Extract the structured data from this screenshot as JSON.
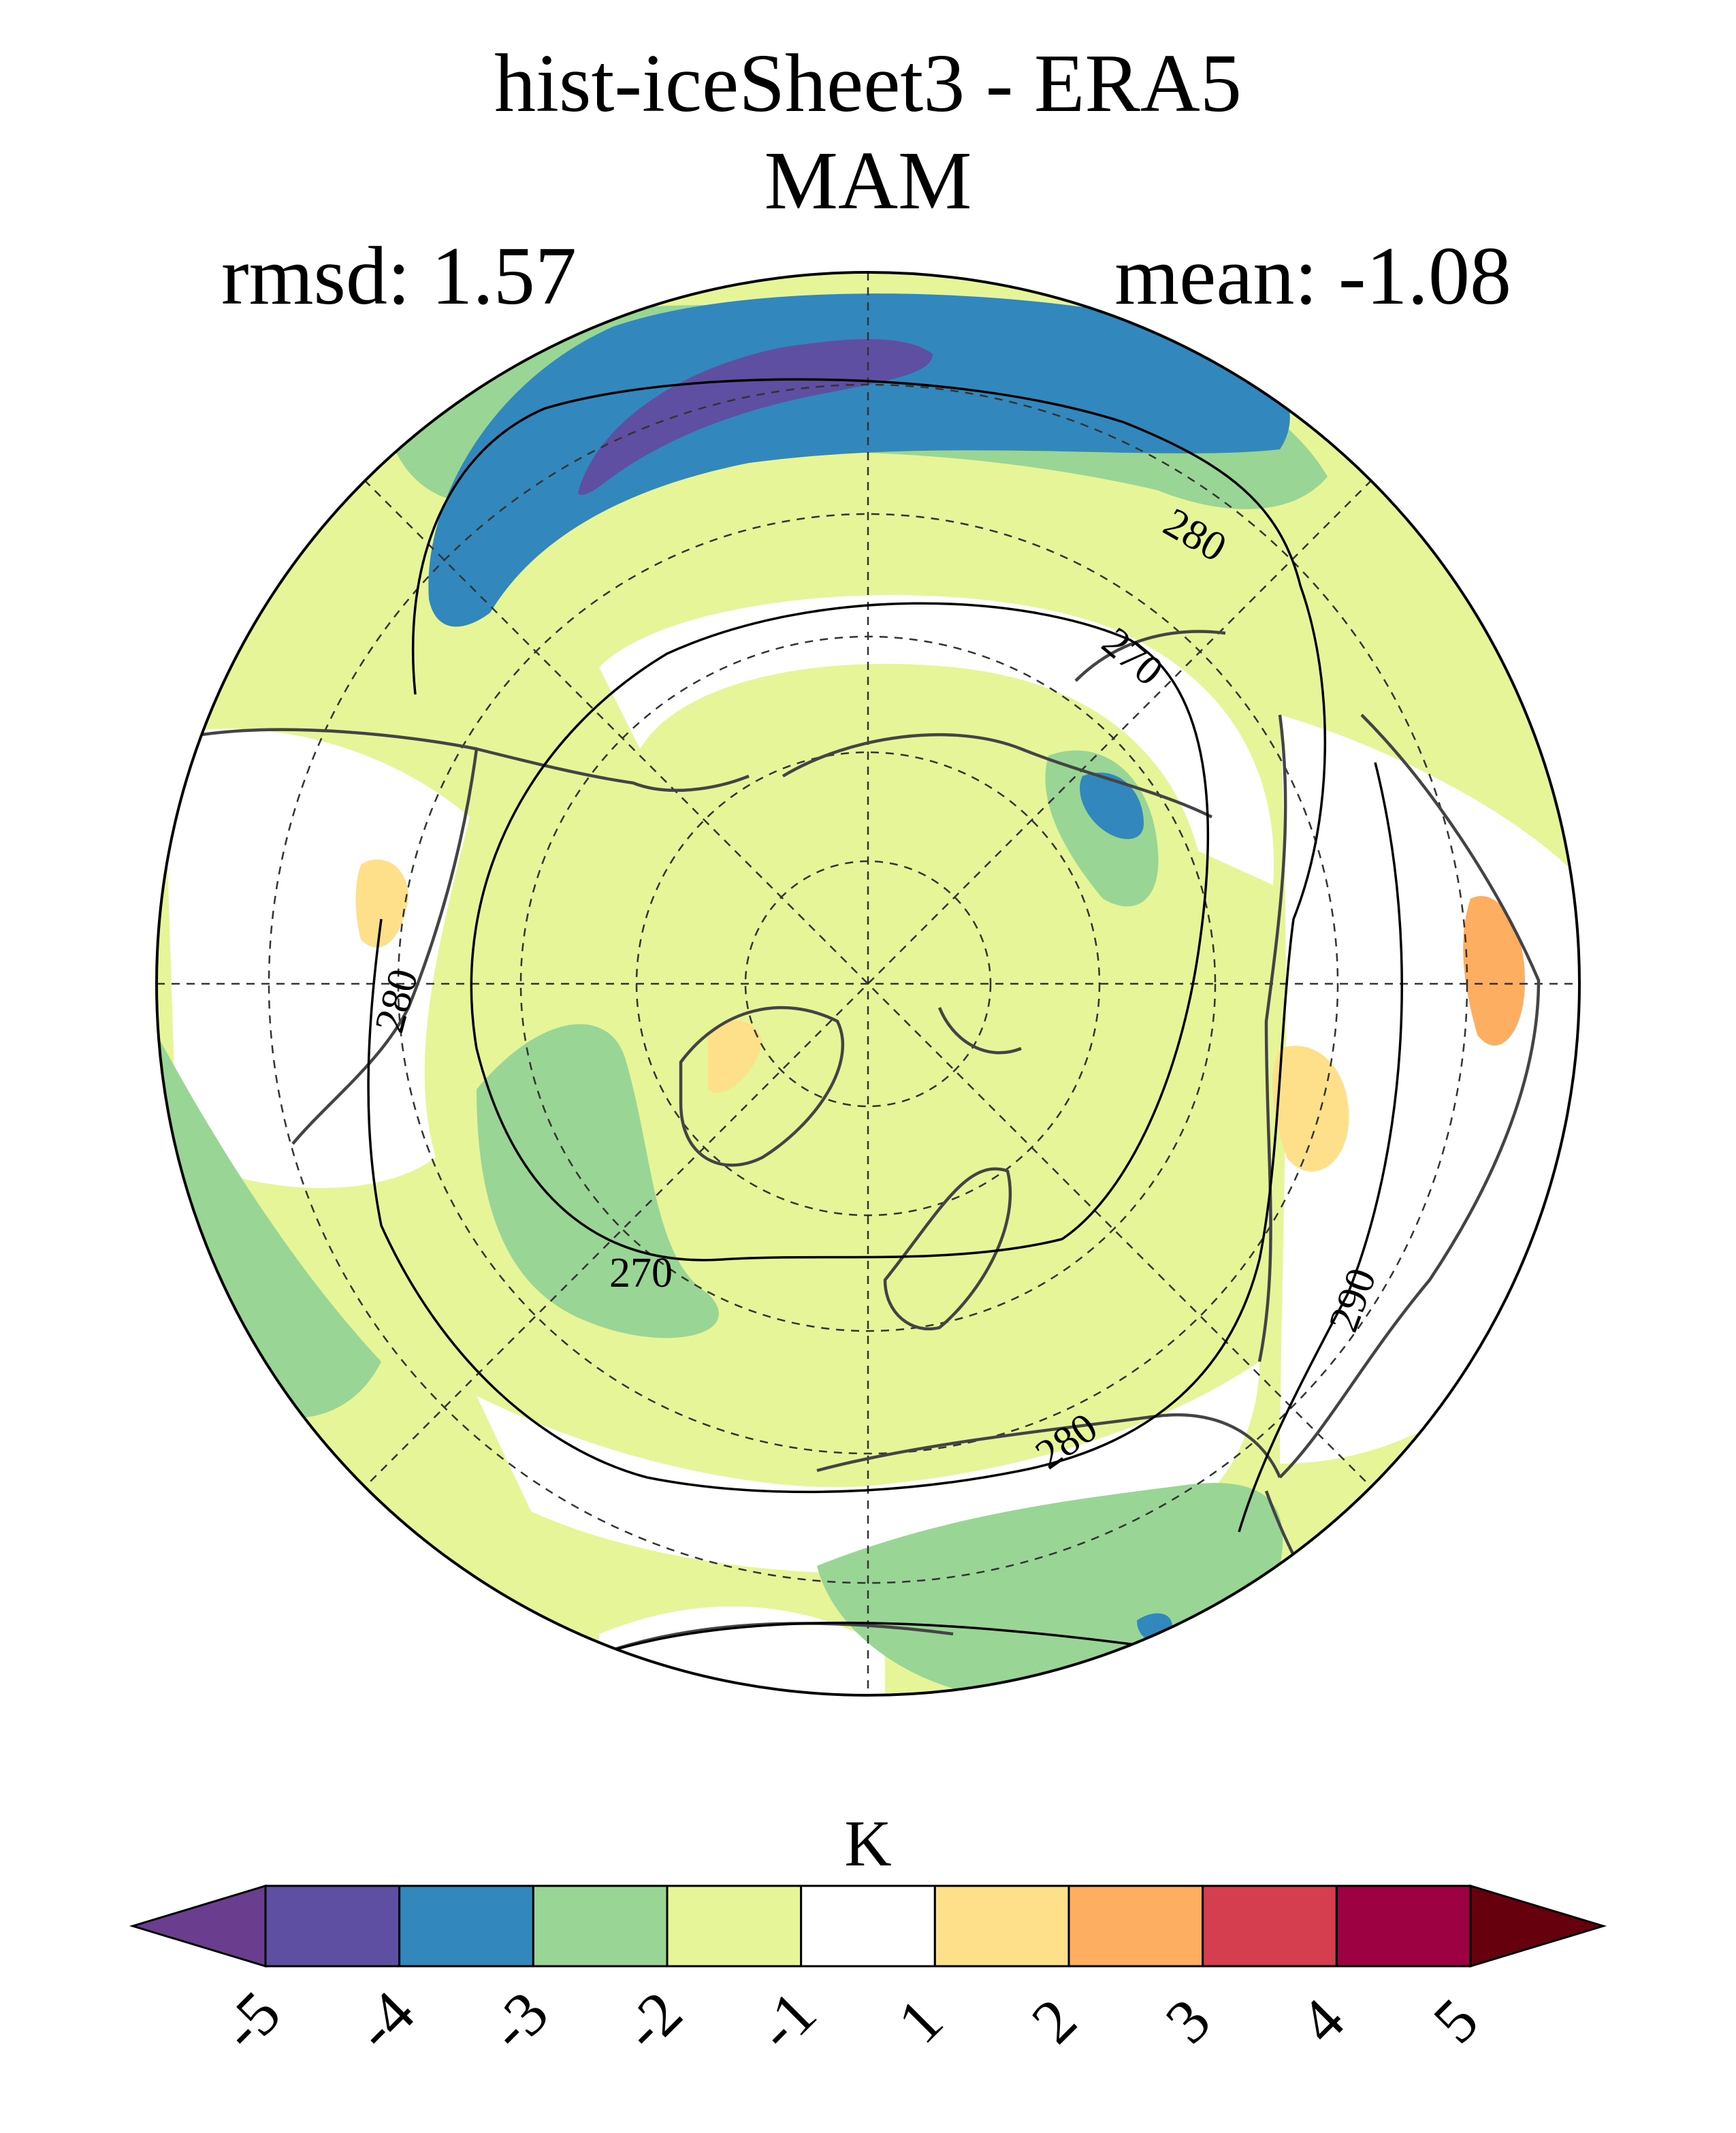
{
  "header": {
    "title": "hist-iceSheet3 - ERA5",
    "season": "MAM",
    "rmsd_text": "rmsd: 1.57",
    "mean_text": "mean: -1.08"
  },
  "map": {
    "projection": "north-polar-stereographic",
    "contour_labels": [
      "280",
      "270",
      "270",
      "280",
      "290",
      "280"
    ]
  },
  "colorbar": {
    "unit": "K",
    "tick_labels": [
      "-5",
      "-4",
      "-3",
      "-2",
      "-1",
      "1",
      "2",
      "3",
      "4",
      "5"
    ],
    "colors": {
      "low_extend": "#6a3d8f",
      "bins": [
        "#5e4fa2",
        "#3288bd",
        "#99d594",
        "#e6f598",
        "#ffffff",
        "#fee08b",
        "#fdae61",
        "#d53e4f",
        "#9e0142"
      ],
      "high_extend": "#67000d"
    }
  }
}
